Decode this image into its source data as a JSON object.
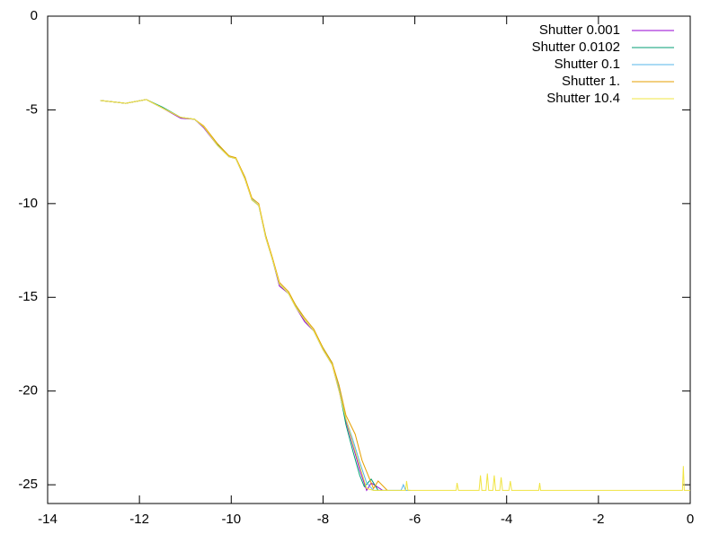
{
  "chart_data": {
    "type": "line",
    "xlim": [
      -14,
      0
    ],
    "xticks": [
      -14,
      -12,
      -10,
      -8,
      -6,
      -4,
      -2,
      0
    ],
    "ylim": [
      -26,
      0
    ],
    "yticks": [
      0,
      -5,
      -10,
      -15,
      -20,
      -25
    ],
    "legend": "top right",
    "series": [
      {
        "name": "Shutter 0.001",
        "color": "#9400d3",
        "x": [
          -12.85,
          -12.3,
          -11.85,
          -11.5,
          -11.1,
          -10.8,
          -10.6,
          -10.3,
          -10.05,
          -9.9,
          -9.7,
          -9.55,
          -9.4,
          -9.25,
          -9.1,
          -8.95,
          -8.75,
          -8.6,
          -8.4,
          -8.2,
          -8.0,
          -7.8,
          -7.65,
          -7.5,
          -7.35,
          -7.2,
          -7.05,
          -6.95,
          -6.7
        ],
        "values": [
          -4.5,
          -4.65,
          -4.45,
          -4.9,
          -5.45,
          -5.5,
          -5.95,
          -6.9,
          -7.5,
          -7.6,
          -8.7,
          -9.8,
          -10.1,
          -11.8,
          -13,
          -14.4,
          -14.8,
          -15.5,
          -16.3,
          -16.8,
          -17.8,
          -18.6,
          -20,
          -21.6,
          -22.9,
          -24.2,
          -25.3,
          -24.9,
          -25.3
        ]
      },
      {
        "name": "Shutter 0.0102",
        "color": "#009e73",
        "x": [
          -12.85,
          -12.3,
          -11.85,
          -11.5,
          -11.1,
          -10.8,
          -10.6,
          -10.3,
          -10.05,
          -9.9,
          -9.7,
          -9.55,
          -9.4,
          -9.25,
          -9.1,
          -8.95,
          -8.75,
          -8.6,
          -8.4,
          -8.2,
          -8.0,
          -7.8,
          -7.65,
          -7.5,
          -7.35,
          -7.2,
          -7.1,
          -6.95,
          -6.8
        ],
        "values": [
          -4.5,
          -4.65,
          -4.45,
          -4.85,
          -5.4,
          -5.5,
          -5.9,
          -6.85,
          -7.45,
          -7.6,
          -8.6,
          -9.8,
          -10.1,
          -11.7,
          -13,
          -14.3,
          -14.8,
          -15.4,
          -16.2,
          -16.8,
          -17.7,
          -18.5,
          -19.9,
          -21.8,
          -23.2,
          -24.5,
          -25.1,
          -24.7,
          -25.3
        ]
      },
      {
        "name": "Shutter 0.1",
        "color": "#56b4e9",
        "x": [
          -12.85,
          -12.3,
          -11.85,
          -11.5,
          -11.1,
          -10.8,
          -10.6,
          -10.3,
          -10.05,
          -9.9,
          -9.7,
          -9.55,
          -9.4,
          -9.25,
          -9.1,
          -8.95,
          -8.75,
          -8.6,
          -8.4,
          -8.2,
          -8.0,
          -7.8,
          -7.65,
          -7.5,
          -7.35,
          -7.2,
          -7.05,
          -6.9,
          -6.3,
          -6.25,
          -6.2,
          -6.1
        ],
        "values": [
          -4.5,
          -4.65,
          -4.45,
          -4.9,
          -5.4,
          -5.5,
          -5.9,
          -6.9,
          -7.5,
          -7.6,
          -8.7,
          -9.75,
          -10.1,
          -11.8,
          -13,
          -14.3,
          -14.8,
          -15.5,
          -16.2,
          -16.8,
          -17.8,
          -18.6,
          -19.8,
          -21.5,
          -22.6,
          -23.8,
          -24.9,
          -25.3,
          -25.3,
          -25.0,
          -25.3,
          -25.3
        ]
      },
      {
        "name": "Shutter 1.",
        "color": "#e69f00",
        "x": [
          -12.85,
          -12.3,
          -11.85,
          -11.5,
          -11.1,
          -10.8,
          -10.6,
          -10.3,
          -10.05,
          -9.9,
          -9.7,
          -9.55,
          -9.4,
          -9.25,
          -9.1,
          -8.95,
          -8.75,
          -8.6,
          -8.4,
          -8.2,
          -8.0,
          -7.8,
          -7.65,
          -7.5,
          -7.3,
          -7.15,
          -7.0,
          -6.9,
          -6.8,
          -6.6
        ],
        "values": [
          -4.5,
          -4.65,
          -4.45,
          -4.9,
          -5.4,
          -5.5,
          -5.85,
          -6.8,
          -7.45,
          -7.55,
          -8.6,
          -9.7,
          -10.0,
          -11.7,
          -12.9,
          -14.2,
          -14.7,
          -15.4,
          -16.1,
          -16.7,
          -17.7,
          -18.5,
          -19.7,
          -21.3,
          -22.3,
          -23.7,
          -24.6,
          -25.2,
          -24.8,
          -25.3
        ]
      },
      {
        "name": "Shutter 10.4",
        "color": "#f0e442",
        "x": [
          -12.85,
          -12.3,
          -11.85,
          -11.5,
          -11.1,
          -10.8,
          -10.6,
          -10.3,
          -10.05,
          -9.9,
          -9.7,
          -9.55,
          -9.4,
          -9.25,
          -9.1,
          -8.95,
          -8.75,
          -8.6,
          -8.4,
          -8.2,
          -8.0,
          -7.8,
          -7.65,
          -7.5,
          -7.35,
          -7.2,
          -7.05,
          -6.9,
          -6.2,
          -6.18,
          -6.15,
          -5.1,
          -5.08,
          -5.05,
          -4.6,
          -4.57,
          -4.54,
          -4.45,
          -4.42,
          -4.39,
          -4.3,
          -4.27,
          -4.24,
          -4.15,
          -4.12,
          -4.09,
          -3.95,
          -3.92,
          -3.89,
          -3.3,
          -3.28,
          -3.26,
          -0.17,
          -0.15,
          -0.13,
          0
        ],
        "values": [
          -4.5,
          -4.65,
          -4.45,
          -4.9,
          -5.4,
          -5.5,
          -5.9,
          -6.9,
          -7.5,
          -7.6,
          -8.7,
          -9.8,
          -10.1,
          -11.8,
          -13,
          -14.3,
          -14.8,
          -15.5,
          -16.2,
          -16.8,
          -17.8,
          -18.6,
          -20,
          -21.5,
          -22.8,
          -24.0,
          -25.2,
          -25.3,
          -25.3,
          -24.8,
          -25.3,
          -25.3,
          -24.9,
          -25.3,
          -25.3,
          -24.5,
          -25.3,
          -25.3,
          -24.4,
          -25.3,
          -25.3,
          -24.5,
          -25.3,
          -25.3,
          -24.6,
          -25.3,
          -25.3,
          -24.8,
          -25.3,
          -25.3,
          -24.9,
          -25.3,
          -25.3,
          -24.0,
          -25.3,
          -25.3
        ]
      }
    ]
  }
}
